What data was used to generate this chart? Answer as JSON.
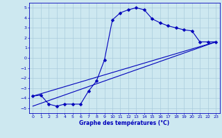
{
  "xlabel": "Graphe des températures (°C)",
  "xlim": [
    -0.5,
    23.5
  ],
  "ylim": [
    -5.5,
    5.5
  ],
  "xticks": [
    0,
    1,
    2,
    3,
    4,
    5,
    6,
    7,
    8,
    9,
    10,
    11,
    12,
    13,
    14,
    15,
    16,
    17,
    18,
    19,
    20,
    21,
    22,
    23
  ],
  "yticks": [
    -5,
    -4,
    -3,
    -2,
    -1,
    0,
    1,
    2,
    3,
    4,
    5
  ],
  "background_color": "#cde8f0",
  "grid_color": "#aaccdd",
  "line_color": "#0000bb",
  "curve1_x": [
    0,
    1,
    2,
    3,
    4,
    5,
    6,
    7,
    8,
    9,
    10,
    11,
    12,
    13,
    14,
    15,
    16,
    17,
    18,
    19,
    20,
    21,
    22,
    23
  ],
  "curve1_y": [
    -3.8,
    -3.7,
    -4.6,
    -4.8,
    -4.6,
    -4.6,
    -4.6,
    -3.3,
    -2.3,
    -0.2,
    3.8,
    4.5,
    4.8,
    5.0,
    4.8,
    3.9,
    3.5,
    3.2,
    3.0,
    2.8,
    2.7,
    1.6,
    1.6,
    1.6
  ],
  "line1_x": [
    0,
    23
  ],
  "line1_y": [
    -3.8,
    1.6
  ],
  "line2_x": [
    0,
    23
  ],
  "line2_y": [
    -4.8,
    1.6
  ],
  "marker_size": 2.5,
  "linewidth": 0.8,
  "tick_fontsize": 4.5,
  "xlabel_fontsize": 5.5
}
